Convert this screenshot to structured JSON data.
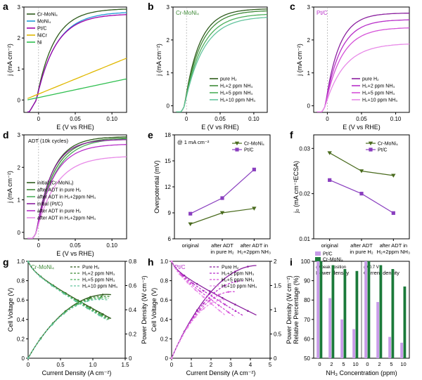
{
  "colors": {
    "crmoni4": "#2e5b1c",
    "moni4": "#1f9ad6",
    "ptc": "#a000a8",
    "nicr": "#e0b800",
    "ni": "#2fbf4f",
    "g1": "#2e5b1c",
    "g2": "#3f8a38",
    "g3": "#4caf5a",
    "g4": "#64c49e",
    "p1": "#8a1f9e",
    "p2": "#b82fc9",
    "p3": "#d552d8",
    "p4": "#e88ae8",
    "olive": "#4a6b1e",
    "purple": "#8a3fbf",
    "bar_pt": "#c89be8",
    "bar_cr": "#1b7a3a"
  },
  "chart_data": [
    {
      "panel": "a",
      "type": "line",
      "xlabel": "E (V vs RHE)",
      "ylabel": "j (mA cm⁻²)",
      "xlim": [
        -0.02,
        0.12
      ],
      "ylim": [
        -0.4,
        3.0
      ],
      "xticks": [
        "0",
        "0.05",
        "0.10"
      ],
      "yticks": [
        "0",
        "1",
        "2",
        "3"
      ],
      "series": [
        {
          "name": "Cr-MoNi₄",
          "color": "crmoni4",
          "kind": "sat",
          "jmax": 2.95,
          "tau": 0.024
        },
        {
          "name": "MoNi₄",
          "color": "moni4",
          "kind": "sat",
          "jmax": 2.85,
          "tau": 0.027
        },
        {
          "name": "Pt/C",
          "color": "ptc",
          "kind": "sat",
          "jmax": 2.78,
          "tau": 0.026
        },
        {
          "name": "NiCr",
          "color": "nicr",
          "kind": "lin",
          "y0": 0.0,
          "y1": 1.35
        },
        {
          "name": "Ni",
          "color": "ni",
          "kind": "lin",
          "y0": -0.02,
          "y1": 0.68
        }
      ]
    },
    {
      "panel": "b",
      "type": "line",
      "title": "Cr-MoNi₄",
      "xlabel": "E (V vs RHE)",
      "ylabel": "j (mA cm⁻²)",
      "xlim": [
        -0.02,
        0.12
      ],
      "ylim": [
        -0.2,
        3.0
      ],
      "xticks": [
        "0",
        "0.05",
        "0.10"
      ],
      "yticks": [
        "0",
        "1",
        "2",
        "3"
      ],
      "series": [
        {
          "name": "pure H₂",
          "color": "g1",
          "kind": "sat",
          "jmax": 2.95,
          "tau": 0.022
        },
        {
          "name": "H₂+2 ppm NH₃",
          "color": "g2",
          "kind": "sat",
          "jmax": 2.9,
          "tau": 0.024
        },
        {
          "name": "H₂+5 ppm NH₃",
          "color": "g3",
          "kind": "sat",
          "jmax": 2.8,
          "tau": 0.026
        },
        {
          "name": "H₂+10 ppm NH₃",
          "color": "g4",
          "kind": "sat",
          "jmax": 2.72,
          "tau": 0.028
        }
      ]
    },
    {
      "panel": "c",
      "type": "line",
      "title": "Pt/C",
      "xlabel": "E (V vs RHE)",
      "ylabel": "j (mA cm⁻²)",
      "xlim": [
        -0.02,
        0.12
      ],
      "ylim": [
        -0.2,
        3.0
      ],
      "xticks": [
        "0",
        "0.05",
        "0.10"
      ],
      "yticks": [
        "0",
        "1",
        "2",
        "3"
      ],
      "series": [
        {
          "name": "pure H₂",
          "color": "p1",
          "kind": "sat",
          "jmax": 2.82,
          "tau": 0.02
        },
        {
          "name": "H₂+2 ppm NH₃",
          "color": "p2",
          "kind": "sat",
          "jmax": 2.62,
          "tau": 0.022
        },
        {
          "name": "H₂+5 ppm NH₃",
          "color": "p3",
          "kind": "sat",
          "jmax": 2.38,
          "tau": 0.024
        },
        {
          "name": "H₂+10 ppm NH₃",
          "color": "p4",
          "kind": "sat",
          "jmax": 1.9,
          "tau": 0.028
        }
      ]
    },
    {
      "panel": "d",
      "type": "line",
      "title": "ADT (10k cycles)",
      "xlabel": "E (V vs RHE)",
      "ylabel": "j (mA cm⁻²)",
      "xlim": [
        -0.02,
        0.12
      ],
      "ylim": [
        -0.2,
        3.0
      ],
      "xticks": [
        "0",
        "0.05",
        "0.10"
      ],
      "yticks": [
        "0",
        "1",
        "2",
        "3"
      ],
      "series": [
        {
          "name": "initial (Cr-MoNi₄)",
          "color": "g1",
          "kind": "sat",
          "jmax": 2.95,
          "tau": 0.022
        },
        {
          "name": "after ADT in pure H₂",
          "color": "g2",
          "kind": "sat",
          "jmax": 2.92,
          "tau": 0.024
        },
        {
          "name": "after ADT in H₂+2ppm NH₃",
          "color": "g3",
          "kind": "sat",
          "jmax": 2.9,
          "tau": 0.026
        },
        {
          "name": "initial (Pt/C)",
          "color": "p1",
          "kind": "sat",
          "jmax": 2.86,
          "tau": 0.021
        },
        {
          "name": "after ADT in pure H₂",
          "color": "p2",
          "kind": "sat",
          "jmax": 2.72,
          "tau": 0.024
        },
        {
          "name": "after ADT in H₂+2ppm NH₃",
          "color": "p4",
          "kind": "sat",
          "jmax": 2.35,
          "tau": 0.027
        }
      ]
    },
    {
      "panel": "e",
      "type": "line",
      "annotation": "@ 1 mA cm⁻²",
      "ylabel": "Overpotential (mV)",
      "categories": [
        "original",
        "after ADT in pure H₂",
        "after ADT in H₂+2ppm NH₃"
      ],
      "ylim": [
        6,
        18
      ],
      "yticks": [
        6,
        9,
        12,
        15,
        18
      ],
      "series": [
        {
          "name": "Cr-MoNi₄",
          "color": "olive",
          "marker": "triangle-down",
          "values": [
            7.7,
            9.0,
            9.5
          ]
        },
        {
          "name": "Pt/C",
          "color": "purple",
          "marker": "square",
          "values": [
            8.9,
            10.7,
            14.0
          ]
        }
      ]
    },
    {
      "panel": "f",
      "type": "line",
      "ylabel": "j₀ (mA cm⁻²ECSA)",
      "categories": [
        "original",
        "after ADT in pure H₂",
        "after ADT in H₂+2ppm NH₃"
      ],
      "ylim": [
        0.01,
        0.033
      ],
      "yticks": [
        "0.01",
        "0.02",
        "0.03"
      ],
      "series": [
        {
          "name": "Cr-MoNi₄",
          "color": "olive",
          "marker": "triangle-down",
          "values": [
            0.029,
            0.025,
            0.024
          ]
        },
        {
          "name": "Pt/C",
          "color": "purple",
          "marker": "square",
          "values": [
            0.023,
            0.02,
            0.0157
          ]
        }
      ]
    },
    {
      "panel": "g",
      "type": "line",
      "title": "Cr-MoNi₄",
      "xlabel": "Current Density (A cm⁻²)",
      "ylabel": "Cell Voltage (V)",
      "ylabel_right": "Power Density (W cm⁻²)",
      "xlim": [
        0,
        1.5
      ],
      "ylim": [
        0,
        1.0
      ],
      "ylim_right": [
        0,
        0.8
      ],
      "xticks": [
        "0",
        "0.5",
        "1.0",
        "1.5"
      ],
      "yticks": [
        "0",
        "0.2",
        "0.4",
        "0.6",
        "0.8",
        "1.0"
      ],
      "yticks_right": [
        "0",
        "0.2",
        "0.4",
        "0.6",
        "0.8"
      ],
      "series": [
        {
          "name": "Pure H₂",
          "color": "g1",
          "imax": 1.28
        },
        {
          "name": "H₂+2 ppm NH₃",
          "color": "g2",
          "imax": 1.26
        },
        {
          "name": "H₂+5 ppm NH₃",
          "color": "g3",
          "imax": 1.24
        },
        {
          "name": "H₂+10 ppm NH₃",
          "color": "g4",
          "imax": 1.22
        }
      ]
    },
    {
      "panel": "h",
      "type": "line",
      "title": "Pt/C",
      "xlabel": "Current Density (A cm⁻²)",
      "ylabel": "Cell Voltage (V)",
      "ylabel_right": "Power Density (W cm⁻²)",
      "xlim": [
        0,
        5
      ],
      "ylim": [
        0,
        1.0
      ],
      "ylim_right": [
        0,
        2.0
      ],
      "xticks": [
        "0",
        "1",
        "2",
        "3",
        "4",
        "5"
      ],
      "yticks": [
        "0",
        "0.2",
        "0.4",
        "0.6",
        "0.8",
        "1.0"
      ],
      "yticks_right": [
        "0",
        "0.5",
        "1",
        "1.5",
        "2"
      ],
      "series": [
        {
          "name": "Pure H₂",
          "color": "p1",
          "imax": 4.3
        },
        {
          "name": "H₂+2 ppm NH₃",
          "color": "p2",
          "imax": 3.6
        },
        {
          "name": "H₂+5 ppm NH₃",
          "color": "p3",
          "imax": 3.2
        },
        {
          "name": "H₂+10 ppm NH₃",
          "color": "p4",
          "imax": 2.7
        }
      ]
    },
    {
      "panel": "i",
      "type": "bar",
      "xlabel": "NH₃ Concentration (ppm)",
      "ylabel": "Relative Percentage (%)",
      "ylim": [
        50,
        100
      ],
      "yticks": [
        "50",
        "60",
        "70",
        "80",
        "90",
        "100"
      ],
      "categories": [
        "0",
        "2",
        "5",
        "10"
      ],
      "groups": [
        {
          "annot": "@ peak position",
          "title": "Power density",
          "series": [
            {
              "name": "Pt/C",
              "color": "bar_pt",
              "values": [
                100,
                81,
                70,
                65
              ]
            },
            {
              "name": "Cr-MoNi₄",
              "color": "bar_cr",
              "values": [
                100,
                98,
                96,
                95
              ]
            }
          ]
        },
        {
          "annot": "@ 0.7 V",
          "title": "Current density",
          "series": [
            {
              "name": "Pt/C",
              "color": "bar_pt",
              "values": [
                100,
                79,
                61,
                58
              ]
            },
            {
              "name": "Cr-MoNi₄",
              "color": "bar_cr",
              "values": [
                100,
                98,
                96,
                87
              ]
            }
          ]
        }
      ]
    }
  ]
}
